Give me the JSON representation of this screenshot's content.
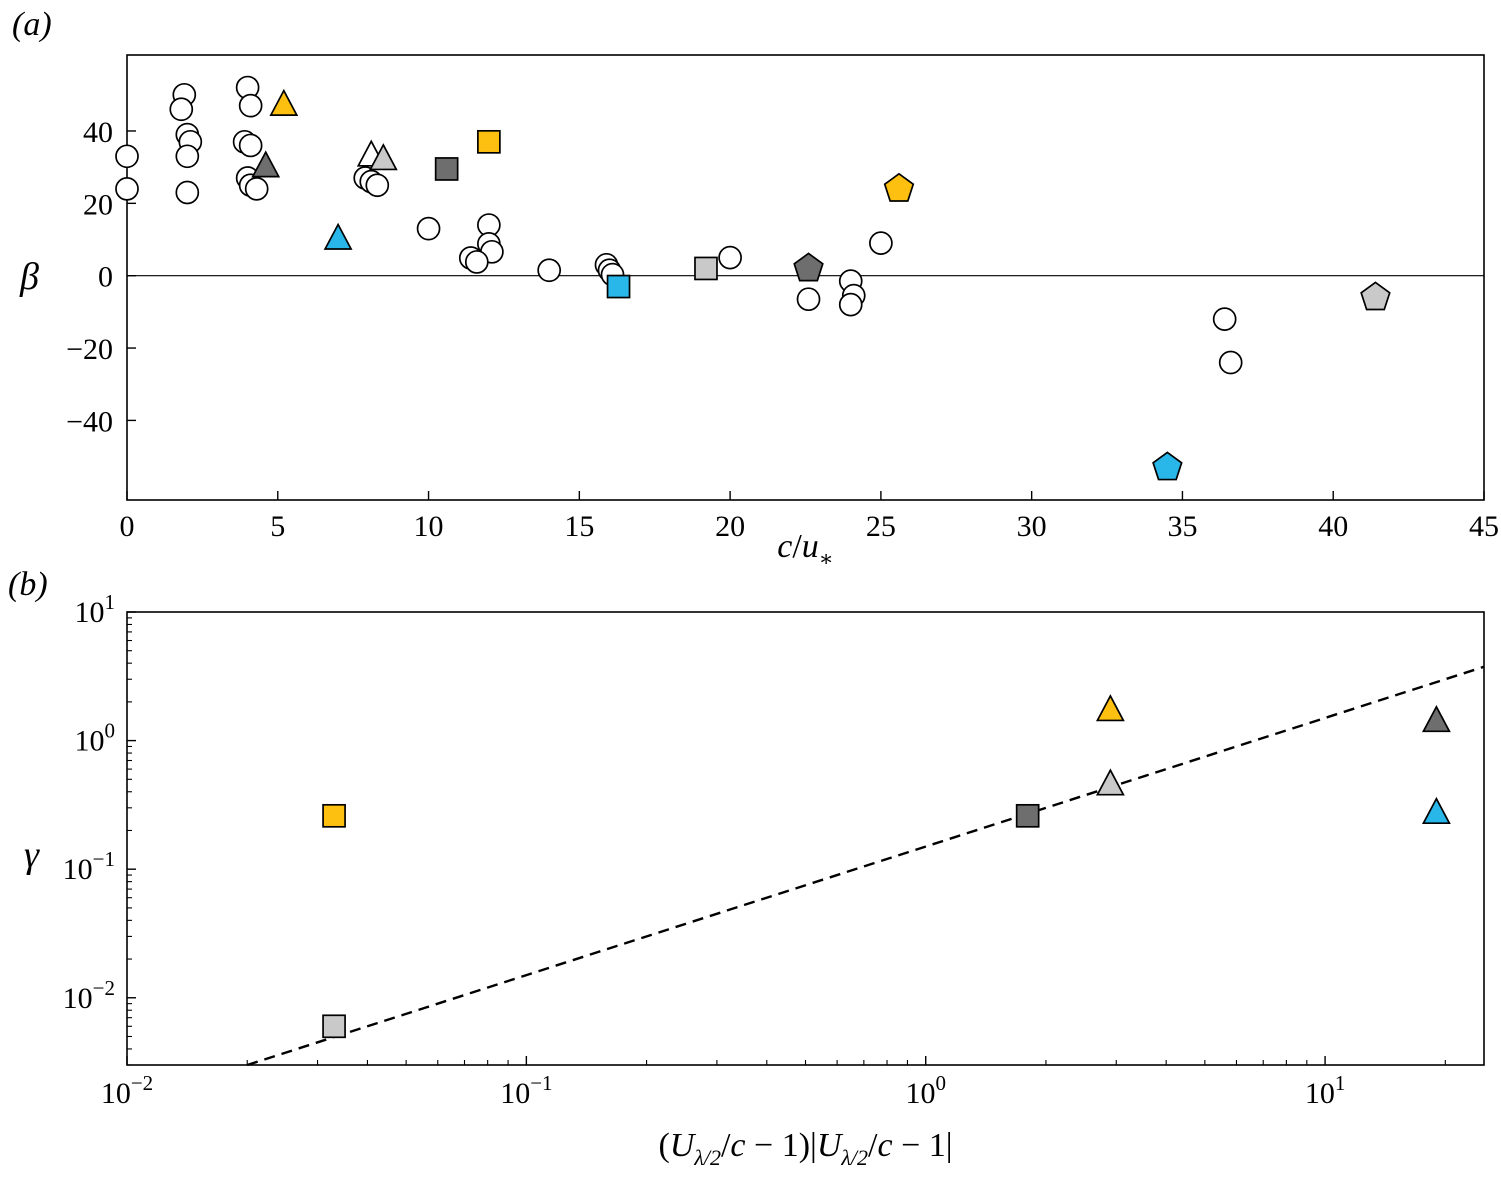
{
  "figure": {
    "description": "Two-panel scatter figure",
    "accent_colors": {
      "yellow": "#FDC010",
      "cyan": "#29B6E8",
      "dark_gray": "#6E6E6E",
      "light_gray": "#C9C9C9",
      "open": "#FFFFFF",
      "edge": "#000000"
    }
  },
  "chart_data": [
    {
      "panel_label": "(a)",
      "type": "scatter",
      "xscale": "linear",
      "yscale": "linear",
      "xlim": [
        0,
        45
      ],
      "ylim": [
        -62,
        61
      ],
      "grid": false,
      "legend": "none",
      "zero_line": true,
      "xticks": [
        {
          "v": 0,
          "l": "0"
        },
        {
          "v": 5,
          "l": "5"
        },
        {
          "v": 10,
          "l": "10"
        },
        {
          "v": 15,
          "l": "15"
        },
        {
          "v": 20,
          "l": "20"
        },
        {
          "v": 25,
          "l": "25"
        },
        {
          "v": 30,
          "l": "30"
        },
        {
          "v": 35,
          "l": "35"
        },
        {
          "v": 40,
          "l": "40"
        },
        {
          "v": 45,
          "l": "45"
        }
      ],
      "yticks": [
        {
          "v": -40,
          "l": "−40"
        },
        {
          "v": -20,
          "l": "−20"
        },
        {
          "v": 0,
          "l": "0"
        },
        {
          "v": 20,
          "l": "20"
        },
        {
          "v": 40,
          "l": "40"
        }
      ],
      "ylabel": "β",
      "xlabel_parts": [
        {
          "t": "c",
          "i": true
        },
        {
          "t": "/"
        },
        {
          "t": "u",
          "i": true
        },
        {
          "t": "∗",
          "s": "sub"
        }
      ],
      "series": [
        {
          "name": "open-circles",
          "marker": "circle",
          "fill": "#FFFFFF",
          "points": [
            [
              0,
              33
            ],
            [
              0,
              24
            ],
            [
              1.9,
              50
            ],
            [
              1.8,
              46
            ],
            [
              2,
              39
            ],
            [
              2.1,
              37
            ],
            [
              2,
              33
            ],
            [
              2,
              23
            ],
            [
              4,
              52
            ],
            [
              4.1,
              47
            ],
            [
              3.9,
              37
            ],
            [
              4.1,
              36
            ],
            [
              4,
              27
            ],
            [
              4.1,
              25
            ],
            [
              4.3,
              24
            ],
            [
              7.9,
              27
            ],
            [
              8.1,
              26
            ],
            [
              8.3,
              25
            ],
            [
              10,
              13
            ],
            [
              12,
              14
            ],
            [
              12,
              8.8
            ],
            [
              12.1,
              6.6
            ],
            [
              11.4,
              4.9
            ],
            [
              11.6,
              3.8
            ],
            [
              14,
              1.5
            ],
            [
              15.9,
              3
            ],
            [
              16,
              1.5
            ],
            [
              16.1,
              0.3
            ],
            [
              20,
              5
            ],
            [
              22.6,
              -6.5
            ],
            [
              24,
              -1.5
            ],
            [
              24.1,
              -5.5
            ],
            [
              24,
              -8
            ],
            [
              25,
              9
            ],
            [
              36.4,
              -12
            ],
            [
              36.6,
              -24
            ]
          ]
        },
        {
          "name": "triangle-open",
          "marker": "triangle",
          "fill": "#FFFFFF",
          "points": [
            [
              8.1,
              33
            ]
          ]
        },
        {
          "name": "triangle-yellow",
          "marker": "triangle",
          "fill": "#FDC010",
          "points": [
            [
              5.2,
              47
            ]
          ]
        },
        {
          "name": "triangle-dark-gray",
          "marker": "triangle",
          "fill": "#6E6E6E",
          "points": [
            [
              4.6,
              30
            ]
          ]
        },
        {
          "name": "triangle-light-gray",
          "marker": "triangle",
          "fill": "#C9C9C9",
          "points": [
            [
              8.5,
              32
            ]
          ]
        },
        {
          "name": "triangle-cyan",
          "marker": "triangle",
          "fill": "#29B6E8",
          "points": [
            [
              7,
              10
            ]
          ]
        },
        {
          "name": "square-yellow",
          "marker": "square",
          "fill": "#FDC010",
          "points": [
            [
              12,
              37
            ]
          ]
        },
        {
          "name": "square-dark-gray",
          "marker": "square",
          "fill": "#6E6E6E",
          "points": [
            [
              10.6,
              29.5
            ]
          ]
        },
        {
          "name": "square-light-gray",
          "marker": "square",
          "fill": "#C9C9C9",
          "points": [
            [
              19.2,
              2
            ]
          ]
        },
        {
          "name": "square-cyan",
          "marker": "square",
          "fill": "#29B6E8",
          "points": [
            [
              16.3,
              -3
            ]
          ]
        },
        {
          "name": "pentagon-yellow",
          "marker": "pentagon",
          "fill": "#FDC010",
          "points": [
            [
              25.6,
              24
            ]
          ]
        },
        {
          "name": "pentagon-dark-gray",
          "marker": "pentagon",
          "fill": "#6E6E6E",
          "points": [
            [
              22.6,
              2
            ]
          ]
        },
        {
          "name": "pentagon-light-gray",
          "marker": "pentagon",
          "fill": "#C9C9C9",
          "points": [
            [
              41.4,
              -6
            ]
          ]
        },
        {
          "name": "pentagon-cyan",
          "marker": "pentagon",
          "fill": "#29B6E8",
          "points": [
            [
              34.5,
              -53
            ]
          ]
        }
      ]
    },
    {
      "panel_label": "(b)",
      "type": "scatter",
      "xscale": "log",
      "yscale": "log",
      "xlim": [
        0.01,
        25
      ],
      "ylim": [
        0.003,
        10
      ],
      "grid": false,
      "legend": "none",
      "zero_line": false,
      "xticks": [
        {
          "v": 0.01,
          "exp": "−2"
        },
        {
          "v": 0.1,
          "exp": "−1"
        },
        {
          "v": 1,
          "exp": "0"
        },
        {
          "v": 10,
          "exp": "1"
        }
      ],
      "yticks": [
        {
          "v": 0.01,
          "exp": "−2"
        },
        {
          "v": 0.1,
          "exp": "−1"
        },
        {
          "v": 1,
          "exp": "0"
        },
        {
          "v": 10,
          "exp": "1"
        }
      ],
      "ylabel": "γ",
      "xlabel_parts": [
        {
          "t": "("
        },
        {
          "t": "U",
          "i": true
        },
        {
          "t": "λ/2",
          "i": true,
          "s": "sub"
        },
        {
          "t": "/"
        },
        {
          "t": "c",
          "i": true
        },
        {
          "t": " − 1)|"
        },
        {
          "t": "U",
          "i": true
        },
        {
          "t": "λ/2",
          "i": true,
          "s": "sub"
        },
        {
          "t": "/"
        },
        {
          "t": "c",
          "i": true
        },
        {
          "t": " − 1|"
        }
      ],
      "fit_line": {
        "style": "dashed",
        "coef": 0.15,
        "power": 1,
        "x_start": 0.02,
        "x_end": 25
      },
      "series": [
        {
          "name": "square-light-gray",
          "marker": "square",
          "fill": "#C9C9C9",
          "points": [
            [
              0.033,
              0.006
            ]
          ]
        },
        {
          "name": "square-yellow",
          "marker": "square",
          "fill": "#FDC010",
          "points": [
            [
              0.033,
              0.26
            ]
          ]
        },
        {
          "name": "square-dark-gray",
          "marker": "square",
          "fill": "#6E6E6E",
          "points": [
            [
              1.8,
              0.26
            ]
          ]
        },
        {
          "name": "triangle-light-gray",
          "marker": "triangle",
          "fill": "#C9C9C9",
          "points": [
            [
              2.9,
              0.45
            ]
          ]
        },
        {
          "name": "triangle-yellow",
          "marker": "triangle",
          "fill": "#FDC010",
          "points": [
            [
              2.9,
              1.7
            ]
          ]
        },
        {
          "name": "triangle-dark-gray",
          "marker": "triangle",
          "fill": "#6E6E6E",
          "points": [
            [
              19,
              1.4
            ]
          ]
        },
        {
          "name": "triangle-cyan",
          "marker": "triangle",
          "fill": "#29B6E8",
          "points": [
            [
              19,
              0.27
            ]
          ]
        }
      ]
    }
  ]
}
